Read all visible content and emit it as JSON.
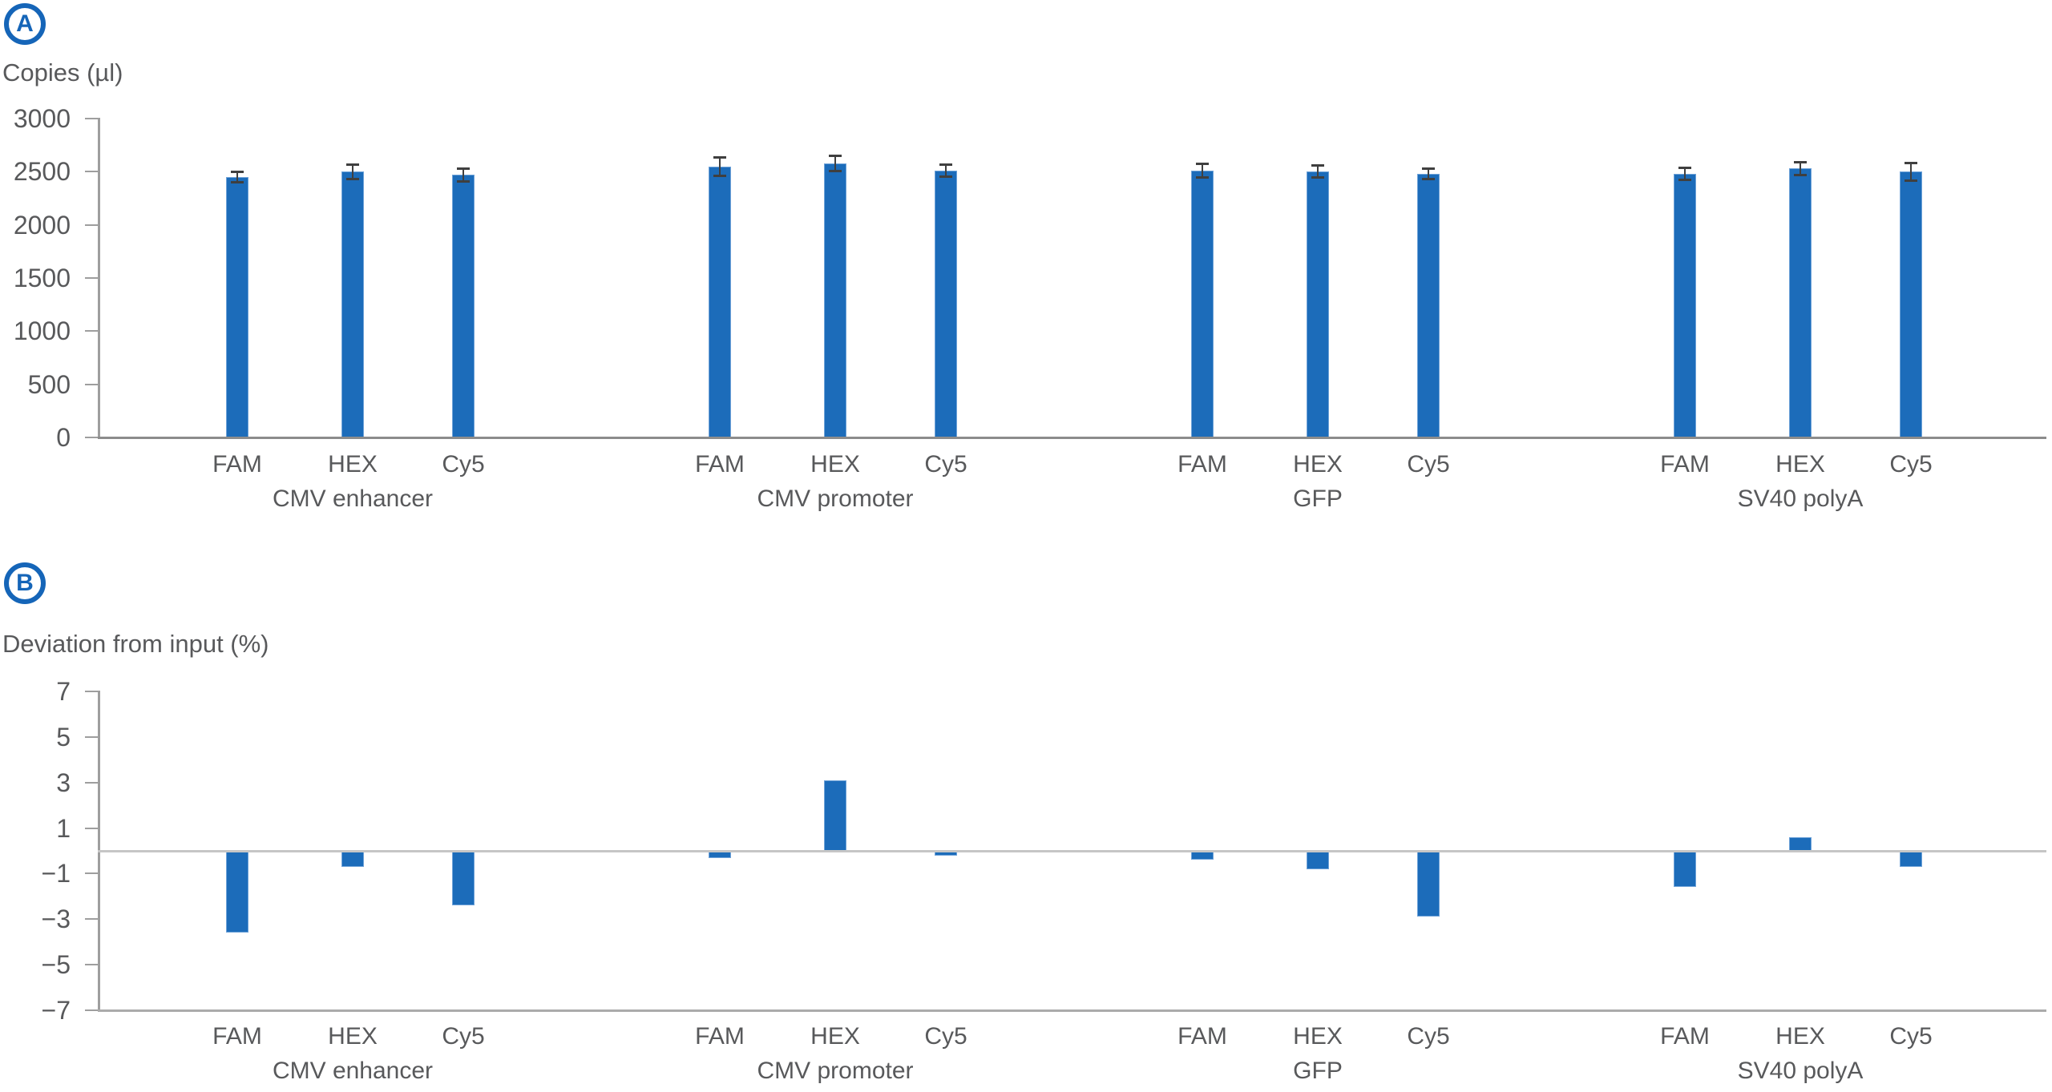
{
  "panels": [
    {
      "badge": "A",
      "title": "Copies (µl)"
    },
    {
      "badge": "B",
      "title": "Deviation from input (%)"
    }
  ],
  "colors": {
    "bar": "#1c6cba",
    "bar_edge": "#6ea2d8",
    "badge_blue": "#1565b8",
    "axis_gray": "#9e9e9e",
    "baseline_gray": "#8c8c8c",
    "zero_line_gray": "#c6c6c6",
    "text_gray": "#58595b",
    "error_bar": "#3f3f3f"
  },
  "chart_data": [
    {
      "type": "bar",
      "panel": "A",
      "title": "Copies (µl)",
      "ylabel": "Copies (µl)",
      "xlabel": "",
      "ylim": [
        0,
        3000
      ],
      "grid": false,
      "legend_position": "none",
      "bar_color": "#1c6cba",
      "yticks": [
        {
          "value": 3000,
          "label": "3000"
        },
        {
          "value": 2500,
          "label": "2500"
        },
        {
          "value": 2000,
          "label": "2000"
        },
        {
          "value": 1500,
          "label": "1500"
        },
        {
          "value": 1000,
          "label": "1000"
        },
        {
          "value": 500,
          "label": "500"
        },
        {
          "value": 0,
          "label": "0"
        }
      ],
      "categories": [
        "FAM",
        "HEX",
        "Cy5"
      ],
      "groups": [
        {
          "label": "CMV enhancer",
          "values": [
            2450,
            2500,
            2470
          ],
          "errors": [
            55,
            70,
            65
          ]
        },
        {
          "label": "CMV promoter",
          "values": [
            2550,
            2580,
            2510
          ],
          "errors": [
            90,
            75,
            60
          ]
        },
        {
          "label": "GFP",
          "values": [
            2510,
            2500,
            2480
          ],
          "errors": [
            65,
            60,
            55
          ]
        },
        {
          "label": "SV40 polyA",
          "values": [
            2480,
            2530,
            2500
          ],
          "errors": [
            60,
            65,
            85
          ]
        }
      ]
    },
    {
      "type": "bar",
      "panel": "B",
      "title": "Deviation from input (%)",
      "ylabel": "Deviation from input (%)",
      "xlabel": "",
      "ylim": [
        -7,
        7
      ],
      "grid": false,
      "zero_line": true,
      "legend_position": "none",
      "bar_color": "#1c6cba",
      "yticks": [
        {
          "value": 7,
          "label": "7"
        },
        {
          "value": 5,
          "label": "5"
        },
        {
          "value": 3,
          "label": "3"
        },
        {
          "value": 1,
          "label": "1"
        },
        {
          "value": -1,
          "label": "−1"
        },
        {
          "value": -3,
          "label": "−3"
        },
        {
          "value": -5,
          "label": "−5"
        },
        {
          "value": -7,
          "label": "−7"
        }
      ],
      "categories": [
        "FAM",
        "HEX",
        "Cy5"
      ],
      "groups": [
        {
          "label": "CMV enhancer",
          "values": [
            -3.6,
            -0.7,
            -2.4
          ]
        },
        {
          "label": "CMV promoter",
          "values": [
            -0.3,
            3.1,
            -0.2
          ]
        },
        {
          "label": "GFP",
          "values": [
            -0.4,
            -0.8,
            -2.9
          ]
        },
        {
          "label": "SV40 polyA",
          "values": [
            -1.6,
            0.6,
            -0.7
          ]
        }
      ]
    }
  ]
}
